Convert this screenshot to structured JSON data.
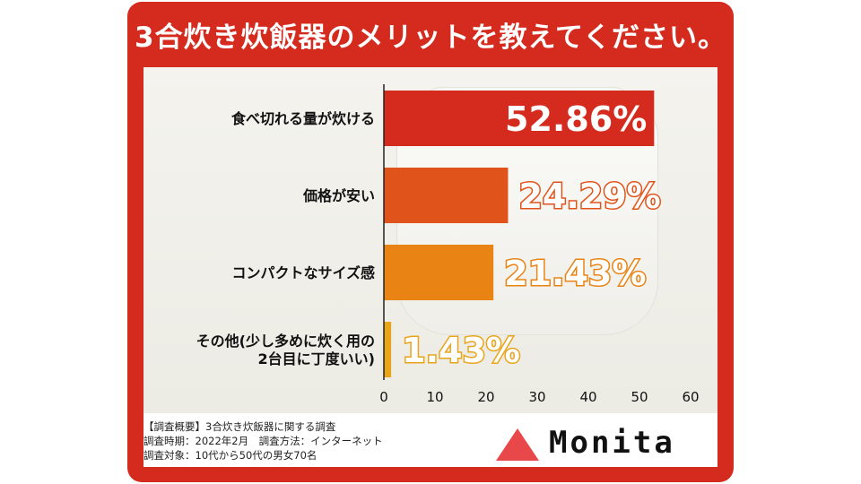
{
  "title": "3合炊き炊飯器のメリットを教えてください。",
  "chart_data": {
    "type": "bar",
    "orientation": "horizontal",
    "categories": [
      "食べ切れる量が炊ける",
      "価格が安い",
      "コンパクトなサイズ感",
      "その他(少し多めに炊く用の2台目に丁度いい)"
    ],
    "category_lines": [
      [
        "食べ切れる量が炊ける"
      ],
      [
        "価格が安い"
      ],
      [
        "コンパクトなサイズ感"
      ],
      [
        "その他(少し多めに炊く用の",
        "2台目に丁度いい)"
      ]
    ],
    "values": [
      52.86,
      24.29,
      21.43,
      1.43
    ],
    "value_labels": [
      "52.86%",
      "24.29%",
      "21.43%",
      "1.43%"
    ],
    "bar_colors": [
      "#d52b1e",
      "#e0541b",
      "#e98314",
      "#e9a51a"
    ],
    "xlim": [
      0,
      60
    ],
    "xticks": [
      0,
      10,
      20,
      30,
      40,
      50,
      60
    ],
    "grid": false,
    "legend": "none"
  },
  "notes": [
    "【調査概要】3合炊き炊飯器に関する調査",
    "調査時期：2022年2月　調査方法：インターネット",
    "調査対象：10代から50代の男女70名"
  ],
  "logo": {
    "text": "Monita",
    "accent": "#e8484a"
  }
}
